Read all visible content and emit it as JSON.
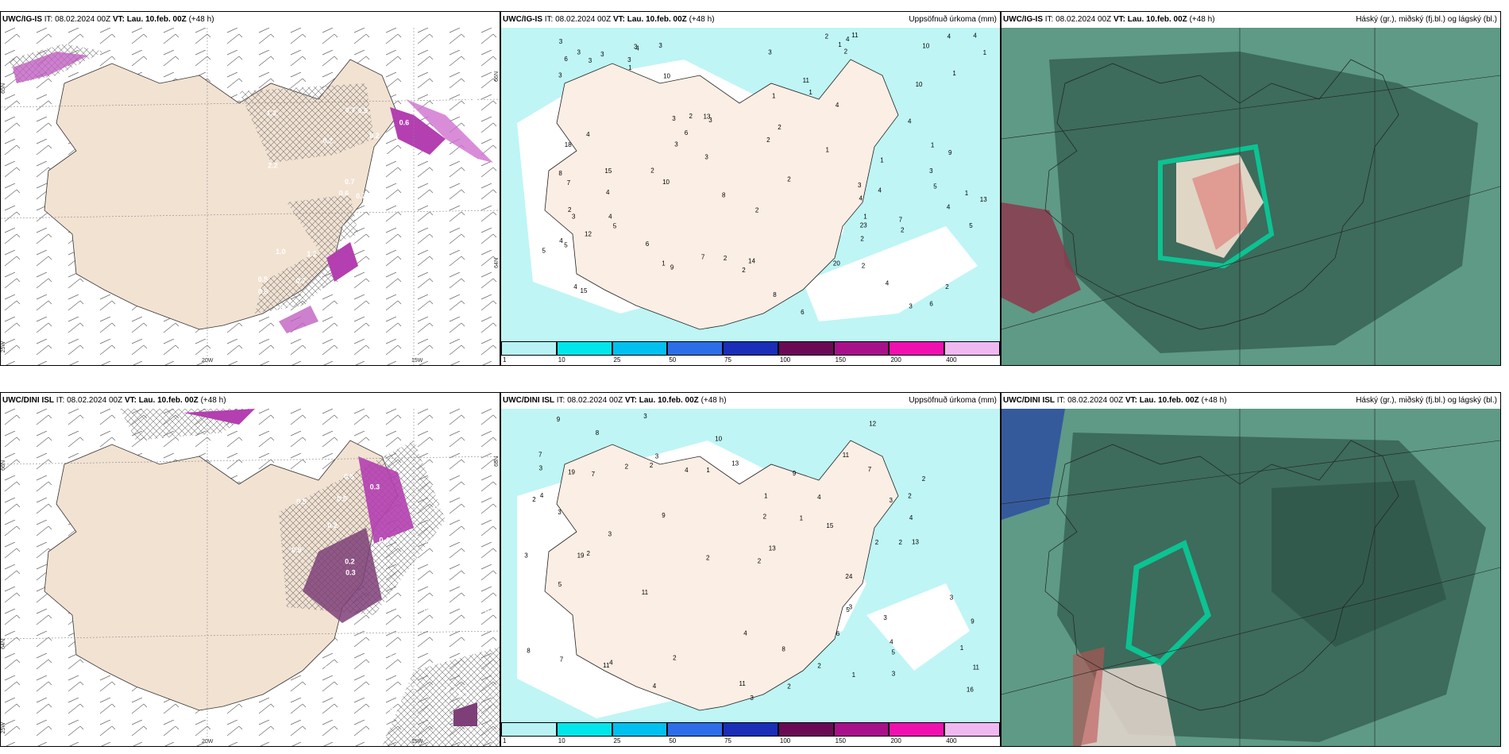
{
  "panels": {
    "top_left": {
      "model": "UWC/IG-IS",
      "it_label": "IT:",
      "it": "08.02.2024 00Z",
      "vt_label": "VT:",
      "vt": "Lau. 10.feb. 00Z",
      "lead": "(+48 h)",
      "right": "",
      "ax1": "20W",
      "ax2": "15W",
      "ax3": "65N",
      "ax4": "64N",
      "ax5": "66N",
      "ax6": "25W"
    },
    "top_mid": {
      "model": "UWC/IG-IS",
      "it_label": "IT:",
      "it": "08.02.2024 00Z",
      "vt_label": "VT:",
      "vt": "Lau. 10.feb. 00Z",
      "lead": "(+48 h)",
      "right": "Uppsöfnuð úrkoma (mm)"
    },
    "top_right": {
      "model": "UWC/IG-IS",
      "it_label": "IT:",
      "it": "08.02.2024 00Z",
      "vt_label": "VT:",
      "vt": "Lau. 10.feb. 00Z",
      "lead": "(+48 h)",
      "right": "Háský (gr.), miðský (fj.bl.) og lágský (bl.)"
    },
    "bottom_left": {
      "model": "UWC/DINI ISL",
      "it_label": "IT:",
      "it": "08.02.2024 00Z",
      "vt_label": "VT:",
      "vt": "Lau. 10.feb. 00Z",
      "lead": "(+48 h)",
      "right": "",
      "ax1": "20W",
      "ax2": "15W",
      "ax3": "66N",
      "ax4": "64N",
      "ax5": "65N",
      "ax6": "25W"
    },
    "bottom_mid": {
      "model": "UWC/DINI ISL",
      "it_label": "IT:",
      "it": "08.02.2024 00Z",
      "vt_label": "VT:",
      "vt": "Lau. 10.feb. 00Z",
      "lead": "(+48 h)",
      "right": "Uppsöfnuð úrkoma (mm)"
    },
    "bottom_right": {
      "model": "UWC/DINI ISL",
      "it_label": "IT:",
      "it": "08.02.2024 00Z",
      "vt_label": "VT:",
      "vt": "Lau. 10.feb. 00Z",
      "lead": "(+48 h)",
      "right": "Háský (gr.), miðský (fj.bl.) og lágský (bl.)"
    }
  },
  "legend": {
    "labels": [
      "1",
      "10",
      "25",
      "50",
      "75",
      "100",
      "150",
      "200",
      "400"
    ],
    "colors": [
      "#b8f2f4",
      "#00e6ea",
      "#00c0f0",
      "#2d6ee8",
      "#1a2eb8",
      "#6a0a55",
      "#a8108a",
      "#f010b0",
      "#f0b8f0"
    ]
  },
  "top_left_values": [
    "0.7",
    "1.2",
    "0.7",
    "0.5",
    "0.5",
    "1.2",
    "1.0",
    "0.5",
    "0.9",
    "1.6",
    "2.8",
    "3.4",
    "2.2",
    "1.4",
    "0.6",
    "0.6",
    "0.3",
    "0.7",
    "0.2",
    "1.0",
    "0.2",
    "0.6",
    "0.7"
  ],
  "top_mid_values": [
    "4",
    "5",
    "4",
    "4",
    "3",
    "4",
    "5",
    "2",
    "3",
    "6",
    "3",
    "8",
    "6",
    "2",
    "7",
    "9",
    "2",
    "2",
    "13",
    "5",
    "4",
    "10",
    "3",
    "4",
    "2",
    "3",
    "1",
    "7",
    "1",
    "1",
    "8",
    "20",
    "6",
    "10",
    "3",
    "2",
    "23",
    "15",
    "14",
    "12",
    "1",
    "11",
    "6",
    "2",
    "7",
    "6",
    "5",
    "3",
    "1",
    "18",
    "13",
    "2",
    "4",
    "3",
    "2",
    "3",
    "4",
    "3",
    "4",
    "3",
    "4",
    "10",
    "2",
    "2",
    "3",
    "4",
    "8",
    "4",
    "2",
    "4",
    "1",
    "3",
    "3",
    "3",
    "2",
    "4",
    "3",
    "1",
    "9",
    "10",
    "5",
    "11",
    "1",
    "4",
    "1",
    "1",
    "3",
    "2",
    "1",
    "1",
    "2",
    "15"
  ],
  "bottom_left_values": [
    "0.5",
    "0.5",
    "0.5",
    "2.0",
    "1.0",
    "0.4",
    "0.9",
    "0.3",
    "1.0",
    "0.6",
    "0.8",
    "0.5",
    "0.3",
    "1.6",
    "0.5",
    "0.7",
    "0.2",
    "0.3",
    "0.3",
    "0.2",
    "0.3",
    "0.3",
    "0.4",
    "0.2",
    "0.3",
    "0.2"
  ],
  "bottom_mid_values": [
    "1",
    "5",
    "7",
    "2",
    "11",
    "13",
    "2",
    "11",
    "3",
    "5",
    "4",
    "9",
    "24",
    "19",
    "11",
    "7",
    "9",
    "6",
    "8",
    "3",
    "3",
    "4",
    "15",
    "2",
    "4",
    "7",
    "9",
    "16",
    "13",
    "10",
    "11",
    "19",
    "12",
    "13",
    "11",
    "1",
    "3",
    "2",
    "1",
    "3",
    "2",
    "3",
    "2",
    "4",
    "4",
    "3",
    "1",
    "3",
    "2",
    "2",
    "4",
    "1",
    "2",
    "3",
    "2",
    "2",
    "4",
    "3",
    "2",
    "3",
    "4",
    "3",
    "2",
    "5",
    "8",
    "7",
    "2",
    "8",
    "9"
  ],
  "colors": {
    "land": "#f2e2d2",
    "snow": "#bff5f5",
    "cloud_dark": "#3d6b5c",
    "cloud_mid": "#5e9a86",
    "cloud_hi": "#00d9a0",
    "precip_purple": "#b43fb0"
  }
}
